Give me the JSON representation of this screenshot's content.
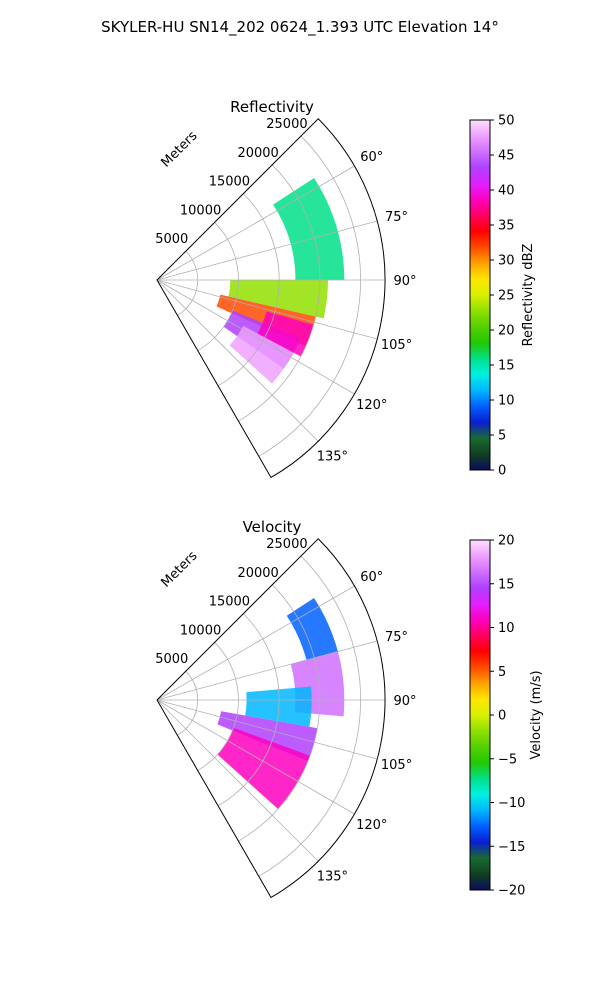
{
  "suptitle": "SKYLER-HU  SN14_202  0624_1.393 UTC Elevation 14°",
  "range_label": "Meters",
  "chart_data": [
    {
      "type": "heatmap",
      "projection": "polar sector (PPI)",
      "title": "Reflectivity",
      "azimuth_range_deg": [
        45,
        150
      ],
      "azimuth_ticks": [
        "60°",
        "75°",
        "90°",
        "105°",
        "120°",
        "135°"
      ],
      "azimuth_tick_values": [
        60,
        75,
        90,
        105,
        120,
        135
      ],
      "range_ticks": [
        "5000",
        "10000",
        "15000",
        "20000",
        "25000"
      ],
      "range_tick_values": [
        5000,
        10000,
        15000,
        20000,
        25000
      ],
      "range_max_m": 28000,
      "grid": true,
      "colorbar": {
        "label": "Reflectivity dBZ",
        "min": 0,
        "max": 50,
        "tick_labels": [
          "0",
          "5",
          "10",
          "15",
          "20",
          "25",
          "30",
          "35",
          "40",
          "45",
          "50"
        ],
        "tick_values": [
          0,
          5,
          10,
          15,
          20,
          25,
          30,
          35,
          40,
          45,
          50
        ]
      },
      "echo_regions": [
        {
          "az": [
            57,
            90
          ],
          "range_m": [
            17000,
            23000
          ],
          "value": 17
        },
        {
          "az": [
            90,
            103
          ],
          "range_m": [
            9000,
            21000
          ],
          "value": 22
        },
        {
          "az": [
            103,
            114
          ],
          "range_m": [
            8000,
            20000
          ],
          "value": 32
        },
        {
          "az": [
            112,
            125
          ],
          "range_m": [
            10000,
            19000
          ],
          "value": 42
        },
        {
          "az": [
            118,
            132
          ],
          "range_m": [
            12000,
            19000
          ],
          "value": 46
        },
        {
          "az": [
            106,
            118
          ],
          "range_m": [
            14000,
            20000
          ],
          "value": 37
        }
      ]
    },
    {
      "type": "heatmap",
      "projection": "polar sector (PPI)",
      "title": "Velocity",
      "azimuth_range_deg": [
        45,
        150
      ],
      "azimuth_ticks": [
        "60°",
        "75°",
        "90°",
        "105°",
        "120°",
        "135°"
      ],
      "azimuth_tick_values": [
        60,
        75,
        90,
        105,
        120,
        135
      ],
      "range_ticks": [
        "5000",
        "10000",
        "15000",
        "20000",
        "25000"
      ],
      "range_tick_values": [
        5000,
        10000,
        15000,
        20000,
        25000
      ],
      "range_max_m": 28000,
      "grid": true,
      "colorbar": {
        "label": "Velocity (m/s)",
        "min": -20,
        "max": 20,
        "tick_labels": [
          "−20",
          "−15",
          "−10",
          "−5",
          "0",
          "5",
          "10",
          "15",
          "20"
        ],
        "tick_values": [
          -20,
          -15,
          -10,
          -5,
          0,
          5,
          10,
          15,
          20
        ]
      },
      "echo_regions": [
        {
          "az": [
            57,
            75
          ],
          "range_m": [
            19000,
            23000
          ],
          "value": -12
        },
        {
          "az": [
            75,
            95
          ],
          "range_m": [
            17000,
            23000
          ],
          "value": 16
        },
        {
          "az": [
            85,
            100
          ],
          "range_m": [
            11000,
            19000
          ],
          "value": -11
        },
        {
          "az": [
            100,
            112
          ],
          "range_m": [
            8000,
            20000
          ],
          "value": 14
        },
        {
          "az": [
            110,
            132
          ],
          "range_m": [
            10000,
            20000
          ],
          "value": 11
        }
      ]
    }
  ],
  "colors": {
    "reflectivity_scale": [
      "#0b0b5e",
      "#104020",
      "#1a6a30",
      "#0a1fd0",
      "#0060ff",
      "#00b6ff",
      "#00f0e0",
      "#00e08a",
      "#22c800",
      "#55d000",
      "#90e000",
      "#d8f000",
      "#ffe600",
      "#ffa000",
      "#ff4a00",
      "#ff0000",
      "#ff0060",
      "#ff00c0",
      "#e020ff",
      "#b040ff",
      "#d070ff",
      "#f0a0ff",
      "#fce0ff"
    ],
    "velocity_scale": [
      "#0b0b5e",
      "#104020",
      "#1a6a30",
      "#0a1fd0",
      "#0060ff",
      "#00b6ff",
      "#00f0e0",
      "#00e08a",
      "#22c800",
      "#55d000",
      "#90e000",
      "#d8f000",
      "#ffe600",
      "#ffa000",
      "#ff4a00",
      "#ff0000",
      "#ff0060",
      "#ff00c0",
      "#e020ff",
      "#b040ff",
      "#d070ff",
      "#f0a0ff",
      "#fce0ff"
    ],
    "grid": "#b0b0b0",
    "frame": "#000000"
  }
}
